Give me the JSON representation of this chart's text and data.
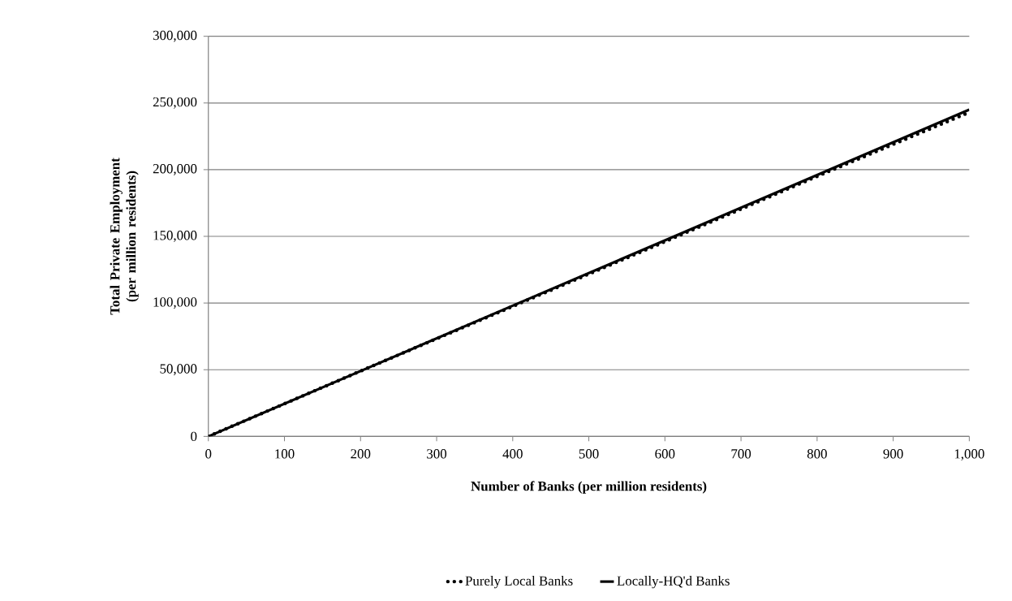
{
  "chart_data": {
    "type": "line",
    "xlabel": "Number of Banks (per million residents)",
    "ylabel": "Total Private Employment (per million residents)",
    "x": [
      0,
      200,
      400,
      600,
      800,
      1000
    ],
    "series": [
      {
        "name": "Purely Local Banks",
        "color": "#000000",
        "line_style": "dotted",
        "values": [
          0,
          49000,
          97500,
          146000,
          195000,
          243000
        ]
      },
      {
        "name": "Locally-HQ'd Banks",
        "color": "#000000",
        "line_style": "solid",
        "values": [
          0,
          49000,
          98000,
          147000,
          196000,
          245000
        ]
      }
    ],
    "xlim": [
      0,
      1000
    ],
    "ylim": [
      0,
      300000
    ],
    "xticks": [
      0,
      100,
      200,
      300,
      400,
      500,
      600,
      700,
      800,
      900,
      {
        "value": 1000,
        "label": "1,000"
      }
    ],
    "yticks": [
      0,
      {
        "value": 50000,
        "label": "50,000"
      },
      {
        "value": 100000,
        "label": "100,000"
      },
      {
        "value": 150000,
        "label": "150,000"
      },
      {
        "value": 200000,
        "label": "200,000"
      },
      {
        "value": 250000,
        "label": "250,000"
      },
      {
        "value": 300000,
        "label": "300,000"
      }
    ],
    "grid": "y",
    "legend": "bottom",
    "marker": "none"
  }
}
